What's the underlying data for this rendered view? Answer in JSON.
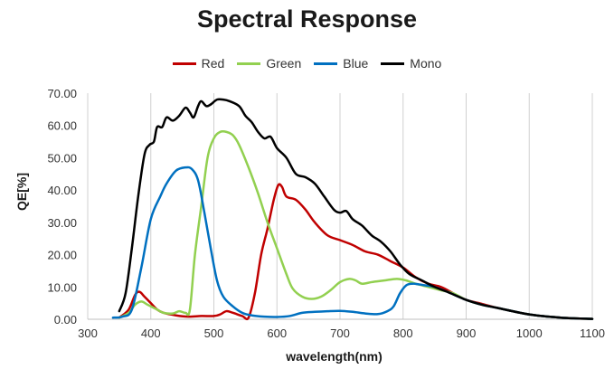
{
  "chart_data": {
    "type": "line",
    "title": "Spectral Response",
    "xlabel": "wavelength(nm)",
    "ylabel": "QE[%]",
    "xlim": [
      300,
      1100
    ],
    "ylim": [
      0,
      70
    ],
    "x_ticks": [
      "300",
      "400",
      "500",
      "600",
      "700",
      "800",
      "900",
      "1000",
      "1100"
    ],
    "y_ticks": [
      "0.00",
      "10.00",
      "20.00",
      "30.00",
      "40.00",
      "50.00",
      "60.00",
      "70.00"
    ],
    "grid": "vertical",
    "legend": "top-center",
    "series": [
      {
        "name": "Red",
        "color": "#c00000",
        "points": [
          [
            350,
            0.5
          ],
          [
            365,
            3
          ],
          [
            375,
            7.5
          ],
          [
            382,
            8.5
          ],
          [
            390,
            7
          ],
          [
            400,
            5
          ],
          [
            410,
            3
          ],
          [
            420,
            2
          ],
          [
            440,
            1.2
          ],
          [
            460,
            0.8
          ],
          [
            480,
            1
          ],
          [
            500,
            1
          ],
          [
            510,
            1.5
          ],
          [
            520,
            2.5
          ],
          [
            530,
            2
          ],
          [
            545,
            1
          ],
          [
            555,
            0.5
          ],
          [
            565,
            8
          ],
          [
            575,
            20
          ],
          [
            585,
            28
          ],
          [
            595,
            37
          ],
          [
            602,
            41.5
          ],
          [
            608,
            41
          ],
          [
            615,
            38
          ],
          [
            630,
            37
          ],
          [
            645,
            34
          ],
          [
            660,
            30
          ],
          [
            680,
            26
          ],
          [
            700,
            24.5
          ],
          [
            720,
            23
          ],
          [
            740,
            21
          ],
          [
            760,
            20
          ],
          [
            780,
            18
          ],
          [
            800,
            16
          ],
          [
            820,
            13
          ],
          [
            840,
            11
          ],
          [
            860,
            10
          ],
          [
            880,
            8
          ],
          [
            900,
            6
          ],
          [
            920,
            5
          ],
          [
            950,
            3.5
          ],
          [
            1000,
            1.5
          ],
          [
            1050,
            0.5
          ],
          [
            1100,
            0.1
          ]
        ]
      },
      {
        "name": "Green",
        "color": "#92d050",
        "points": [
          [
            350,
            0.5
          ],
          [
            365,
            2
          ],
          [
            375,
            4.5
          ],
          [
            385,
            5.5
          ],
          [
            395,
            4.5
          ],
          [
            410,
            3
          ],
          [
            420,
            2
          ],
          [
            435,
            1.8
          ],
          [
            445,
            2.5
          ],
          [
            455,
            2
          ],
          [
            462,
            3
          ],
          [
            470,
            20
          ],
          [
            480,
            35
          ],
          [
            490,
            50
          ],
          [
            500,
            56
          ],
          [
            510,
            58
          ],
          [
            520,
            58
          ],
          [
            530,
            57
          ],
          [
            540,
            54
          ],
          [
            555,
            47
          ],
          [
            570,
            39
          ],
          [
            585,
            30
          ],
          [
            600,
            22
          ],
          [
            615,
            14
          ],
          [
            625,
            9.5
          ],
          [
            640,
            7
          ],
          [
            655,
            6.3
          ],
          [
            670,
            7
          ],
          [
            685,
            9
          ],
          [
            700,
            11.5
          ],
          [
            715,
            12.5
          ],
          [
            725,
            12
          ],
          [
            735,
            11
          ],
          [
            750,
            11.5
          ],
          [
            770,
            12
          ],
          [
            790,
            12.5
          ],
          [
            805,
            12
          ],
          [
            820,
            11
          ],
          [
            840,
            10
          ],
          [
            860,
            9
          ],
          [
            880,
            8
          ],
          [
            900,
            6
          ],
          [
            925,
            4.5
          ],
          [
            950,
            3.5
          ],
          [
            1000,
            1.5
          ],
          [
            1050,
            0.5
          ],
          [
            1100,
            0.1
          ]
        ]
      },
      {
        "name": "Blue",
        "color": "#0070c0",
        "points": [
          [
            340,
            0.5
          ],
          [
            355,
            0.8
          ],
          [
            370,
            3
          ],
          [
            385,
            16
          ],
          [
            400,
            31
          ],
          [
            415,
            38
          ],
          [
            425,
            42
          ],
          [
            440,
            46
          ],
          [
            455,
            47
          ],
          [
            465,
            46.5
          ],
          [
            475,
            43
          ],
          [
            485,
            33
          ],
          [
            495,
            22
          ],
          [
            505,
            12
          ],
          [
            515,
            7
          ],
          [
            530,
            4
          ],
          [
            545,
            2
          ],
          [
            560,
            1.2
          ],
          [
            580,
            0.8
          ],
          [
            600,
            0.7
          ],
          [
            620,
            1
          ],
          [
            640,
            2
          ],
          [
            660,
            2.3
          ],
          [
            680,
            2.5
          ],
          [
            700,
            2.6
          ],
          [
            720,
            2.3
          ],
          [
            740,
            1.8
          ],
          [
            760,
            1.6
          ],
          [
            775,
            2.5
          ],
          [
            785,
            4
          ],
          [
            795,
            8
          ],
          [
            805,
            10.5
          ],
          [
            815,
            11
          ],
          [
            825,
            10.8
          ],
          [
            835,
            10.5
          ],
          [
            850,
            10
          ],
          [
            870,
            8.5
          ],
          [
            900,
            6
          ],
          [
            925,
            4.5
          ],
          [
            950,
            3.5
          ],
          [
            1000,
            1.5
          ],
          [
            1050,
            0.5
          ],
          [
            1100,
            0.1
          ]
        ]
      },
      {
        "name": "Mono",
        "color": "#000000",
        "points": [
          [
            350,
            2.5
          ],
          [
            360,
            8
          ],
          [
            370,
            22
          ],
          [
            380,
            38
          ],
          [
            390,
            51
          ],
          [
            398,
            54
          ],
          [
            405,
            55
          ],
          [
            410,
            59.5
          ],
          [
            418,
            59.5
          ],
          [
            425,
            62.5
          ],
          [
            435,
            61.5
          ],
          [
            445,
            63
          ],
          [
            455,
            65.5
          ],
          [
            462,
            64
          ],
          [
            468,
            62.5
          ],
          [
            475,
            66
          ],
          [
            480,
            67.5
          ],
          [
            488,
            66
          ],
          [
            495,
            66.5
          ],
          [
            505,
            68
          ],
          [
            515,
            68
          ],
          [
            525,
            67.5
          ],
          [
            540,
            66
          ],
          [
            550,
            63
          ],
          [
            560,
            61
          ],
          [
            570,
            58
          ],
          [
            580,
            56
          ],
          [
            590,
            56.5
          ],
          [
            600,
            53
          ],
          [
            615,
            50
          ],
          [
            630,
            45
          ],
          [
            645,
            44
          ],
          [
            660,
            42
          ],
          [
            675,
            38
          ],
          [
            690,
            34
          ],
          [
            700,
            33
          ],
          [
            710,
            33.5
          ],
          [
            720,
            31
          ],
          [
            735,
            29
          ],
          [
            750,
            26
          ],
          [
            765,
            24
          ],
          [
            780,
            21
          ],
          [
            795,
            17
          ],
          [
            810,
            14
          ],
          [
            830,
            12
          ],
          [
            850,
            10
          ],
          [
            870,
            8.5
          ],
          [
            900,
            6
          ],
          [
            925,
            4.5
          ],
          [
            950,
            3.5
          ],
          [
            1000,
            1.5
          ],
          [
            1050,
            0.5
          ],
          [
            1100,
            0.1
          ]
        ]
      }
    ]
  }
}
